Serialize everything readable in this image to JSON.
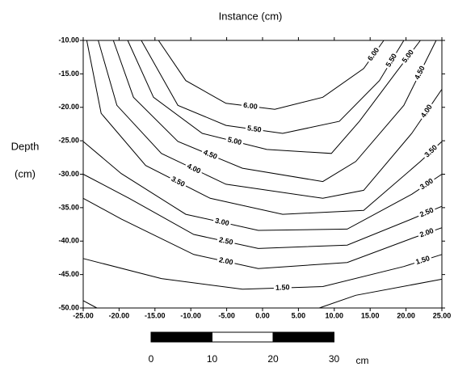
{
  "chart_data": {
    "type": "contour",
    "title": "Instance (cm)",
    "ylabel": [
      "Depth",
      "(cm)"
    ],
    "xlim": [
      -25,
      25
    ],
    "ylim": [
      -50,
      -10
    ],
    "xticks": [
      {
        "value": -25,
        "label": "-25.00"
      },
      {
        "value": -20,
        "label": "-20.00"
      },
      {
        "value": -15,
        "label": "-15.00"
      },
      {
        "value": -10,
        "label": "-10.00"
      },
      {
        "value": -5,
        "label": "-5.00"
      },
      {
        "value": 0,
        "label": "0.00"
      },
      {
        "value": 5,
        "label": "5.00"
      },
      {
        "value": 10,
        "label": "10.00"
      },
      {
        "value": 15,
        "label": "15.00"
      },
      {
        "value": 20,
        "label": "20.00"
      },
      {
        "value": 25,
        "label": "25.00"
      }
    ],
    "yticks": [
      {
        "value": -10,
        "label": "-10.00"
      },
      {
        "value": -15,
        "label": "-15.00"
      },
      {
        "value": -20,
        "label": "-20.00"
      },
      {
        "value": -25,
        "label": "-25.00"
      },
      {
        "value": -30,
        "label": "-30.00"
      },
      {
        "value": -35,
        "label": "-35.00"
      },
      {
        "value": -40,
        "label": "-40.00"
      },
      {
        "value": -45,
        "label": "-45.00"
      },
      {
        "value": -50,
        "label": "-50.00"
      }
    ],
    "color": "#000000",
    "contours": [
      {
        "label": "6.00",
        "x": [
          -14.5,
          -10.7,
          -5.1,
          1.7,
          8.4,
          14.1,
          16.9
        ],
        "y": [
          -10,
          -16.0,
          -19.4,
          -20.3,
          -18.5,
          -14.2,
          -10
        ]
      },
      {
        "label": "5.50",
        "x": [
          -16.9,
          -11.8,
          -5.1,
          2.8,
          10.7,
          16.3,
          19.7
        ],
        "y": [
          -10,
          -19.7,
          -22.7,
          -23.9,
          -22.1,
          -16.0,
          -10
        ]
      },
      {
        "label": "5.00",
        "x": [
          -18.8,
          -15.2,
          -8.4,
          0.6,
          9.6,
          13.5,
          18.6,
          22
        ],
        "y": [
          -10,
          -18.5,
          -23.9,
          -26.3,
          -26.9,
          -22.1,
          -14.8,
          -10
        ]
      },
      {
        "label": "4.50",
        "x": [
          -20.8,
          -18,
          -11.8,
          -2.8,
          8.4,
          13,
          19.7,
          24.2
        ],
        "y": [
          -10,
          -18.5,
          -25.1,
          -29.1,
          -31.1,
          -28.1,
          -19.7,
          -10
        ]
      },
      {
        "label": "4.00",
        "x": [
          -22.9,
          -20.3,
          -14.1,
          -5.1,
          8.4,
          14.1,
          20.8,
          25
        ],
        "y": [
          -10,
          -19.7,
          -26.9,
          -31.5,
          -33.6,
          -32.4,
          -23.9,
          -17.3
        ]
      },
      {
        "label": "3.50",
        "x": [
          -24.5,
          -22.5,
          -16.3,
          -7.3,
          2.8,
          14.1,
          22,
          25
        ],
        "y": [
          -10,
          -20.9,
          -28.7,
          -33.6,
          -36,
          -35.4,
          -28.1,
          -25.1
        ]
      },
      {
        "label": "3.00",
        "x": [
          -25,
          -19.7,
          -10.7,
          -0.6,
          11.8,
          20.8,
          25
        ],
        "y": [
          -25.1,
          -29.9,
          -36,
          -38.4,
          -38.2,
          -33,
          -30
        ]
      },
      {
        "label": "2.50",
        "x": [
          -25,
          -18.6,
          -9.6,
          -0.6,
          11.8,
          20.8,
          25
        ],
        "y": [
          -30,
          -33.6,
          -39,
          -41.1,
          -40.6,
          -36.7,
          -34.8
        ]
      },
      {
        "label": "2.00",
        "x": [
          -25,
          -19.7,
          -9.6,
          -0.6,
          11.8,
          20.8,
          25
        ],
        "y": [
          -33.6,
          -36.7,
          -42,
          -44.1,
          -43.2,
          -39.6,
          -38
        ]
      },
      {
        "label": "1.50",
        "x": [
          -25,
          -14.1,
          -2.8,
          8.4,
          19.7,
          25
        ],
        "y": [
          -42.6,
          -45.6,
          -47.2,
          -46.8,
          -43.8,
          -42
        ]
      },
      {
        "x": [
          -25,
          -23.1,
          null,
          7.9,
          13,
          25
        ],
        "y": [
          -48.9,
          -50,
          null,
          -50,
          -48.1,
          -45.7
        ]
      }
    ],
    "scale_bar": {
      "ticks": [
        0,
        10,
        20,
        30
      ],
      "unit": "cm"
    }
  }
}
